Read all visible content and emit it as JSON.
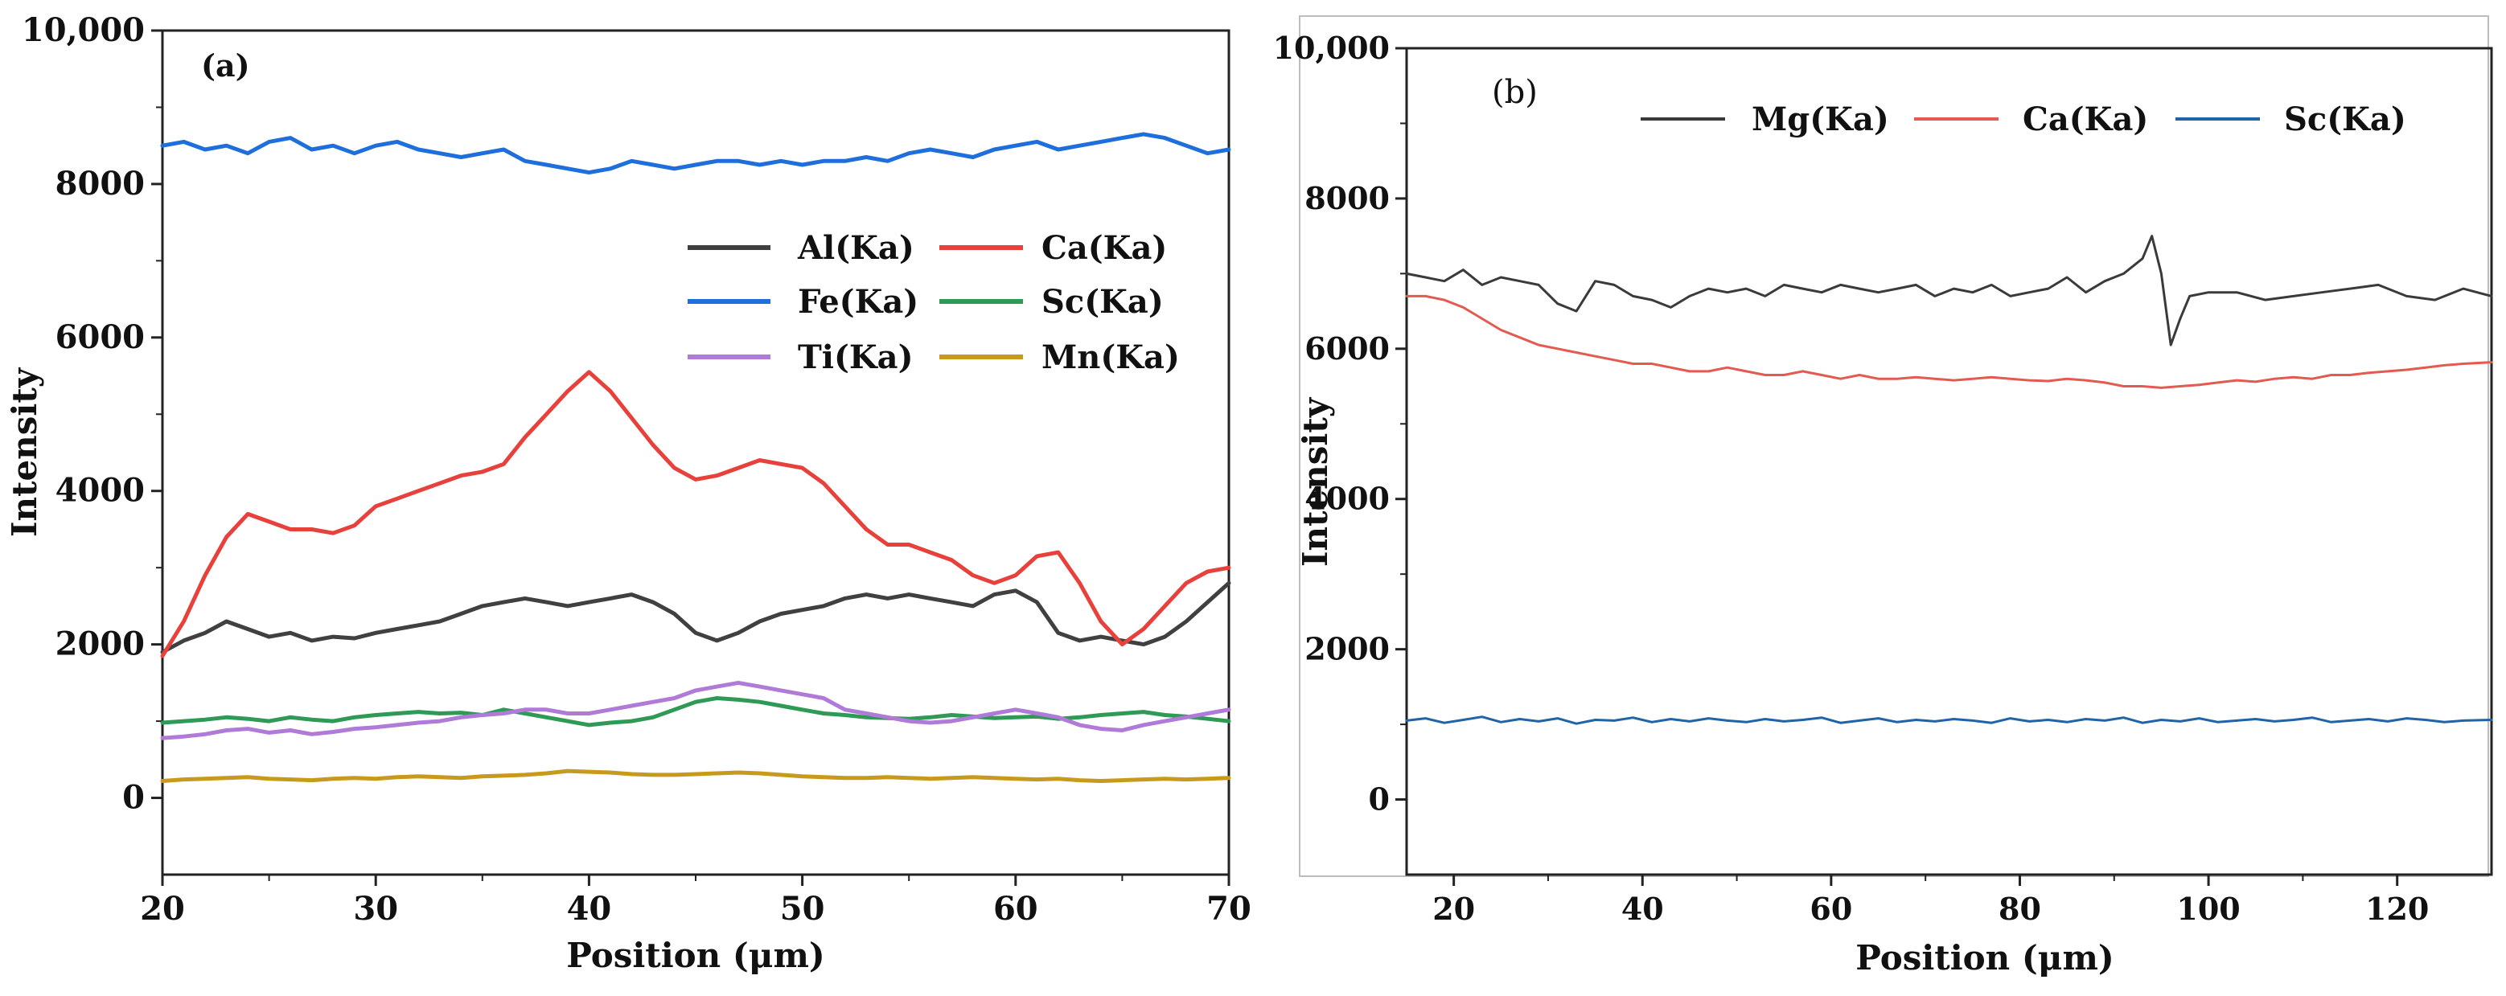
{
  "chart_data": [
    {
      "panel_label": "(a)",
      "type": "line",
      "xlabel": "Position (μm)",
      "ylabel": "Intensity",
      "xlim": [
        20,
        70
      ],
      "ylim": [
        -1000,
        10000
      ],
      "xticks": [
        20,
        30,
        40,
        50,
        60,
        70
      ],
      "xtick_labels": [
        "20",
        "30",
        "40",
        "50",
        "60",
        "70"
      ],
      "yticks": [
        0,
        2000,
        4000,
        6000,
        8000,
        10000
      ],
      "ytick_labels": [
        "0",
        "2000",
        "4000",
        "6000",
        "8000",
        "10,000"
      ],
      "legend_position": "right",
      "series": [
        {
          "name": "Al(Ka)",
          "color": "#404040",
          "x": [
            20,
            21,
            22,
            23,
            24,
            25,
            26,
            27,
            28,
            29,
            30,
            31,
            32,
            33,
            34,
            35,
            36,
            37,
            38,
            39,
            40,
            41,
            42,
            43,
            44,
            45,
            46,
            47,
            48,
            49,
            50,
            51,
            52,
            53,
            54,
            55,
            56,
            57,
            58,
            59,
            60,
            61,
            62,
            63,
            64,
            65,
            66,
            67,
            68,
            69,
            70
          ],
          "y": [
            1900,
            2050,
            2150,
            2300,
            2200,
            2100,
            2150,
            2050,
            2100,
            2080,
            2150,
            2200,
            2250,
            2300,
            2400,
            2500,
            2550,
            2600,
            2550,
            2500,
            2550,
            2600,
            2650,
            2550,
            2400,
            2150,
            2050,
            2150,
            2300,
            2400,
            2450,
            2500,
            2600,
            2650,
            2600,
            2650,
            2600,
            2550,
            2500,
            2650,
            2700,
            2550,
            2150,
            2050,
            2100,
            2050,
            2000,
            2100,
            2300,
            2550,
            2800
          ]
        },
        {
          "name": "Ca(Ka)",
          "color": "#e8413c",
          "x": [
            20,
            21,
            22,
            23,
            24,
            25,
            26,
            27,
            28,
            29,
            30,
            31,
            32,
            33,
            34,
            35,
            36,
            37,
            38,
            39,
            40,
            41,
            42,
            43,
            44,
            45,
            46,
            47,
            48,
            49,
            50,
            51,
            52,
            53,
            54,
            55,
            56,
            57,
            58,
            59,
            60,
            61,
            62,
            63,
            64,
            65,
            66,
            67,
            68,
            69,
            70
          ],
          "y": [
            1850,
            2300,
            2900,
            3400,
            3700,
            3600,
            3500,
            3500,
            3450,
            3550,
            3800,
            3900,
            4000,
            4100,
            4200,
            4250,
            4350,
            4700,
            5000,
            5300,
            5550,
            5300,
            4950,
            4600,
            4300,
            4150,
            4200,
            4300,
            4400,
            4350,
            4300,
            4100,
            3800,
            3500,
            3300,
            3300,
            3200,
            3100,
            2900,
            2800,
            2900,
            3150,
            3200,
            2800,
            2300,
            2000,
            2200,
            2500,
            2800,
            2950,
            3000
          ]
        },
        {
          "name": "Fe(Ka)",
          "color": "#1e6fdc",
          "x": [
            20,
            21,
            22,
            23,
            24,
            25,
            26,
            27,
            28,
            29,
            30,
            31,
            32,
            33,
            34,
            35,
            36,
            37,
            38,
            39,
            40,
            41,
            42,
            43,
            44,
            45,
            46,
            47,
            48,
            49,
            50,
            51,
            52,
            53,
            54,
            55,
            56,
            57,
            58,
            59,
            60,
            61,
            62,
            63,
            64,
            65,
            66,
            67,
            68,
            69,
            70
          ],
          "y": [
            8500,
            8550,
            8450,
            8500,
            8400,
            8550,
            8600,
            8450,
            8500,
            8400,
            8500,
            8550,
            8450,
            8400,
            8350,
            8400,
            8450,
            8300,
            8250,
            8200,
            8150,
            8200,
            8300,
            8250,
            8200,
            8250,
            8300,
            8300,
            8250,
            8300,
            8250,
            8300,
            8300,
            8350,
            8300,
            8400,
            8450,
            8400,
            8350,
            8450,
            8500,
            8550,
            8450,
            8500,
            8550,
            8600,
            8650,
            8600,
            8500,
            8400,
            8450
          ]
        },
        {
          "name": "Sc(Ka)",
          "color": "#2e9a55",
          "x": [
            20,
            21,
            22,
            23,
            24,
            25,
            26,
            27,
            28,
            29,
            30,
            31,
            32,
            33,
            34,
            35,
            36,
            37,
            38,
            39,
            40,
            41,
            42,
            43,
            44,
            45,
            46,
            47,
            48,
            49,
            50,
            51,
            52,
            53,
            54,
            55,
            56,
            57,
            58,
            59,
            60,
            61,
            62,
            63,
            64,
            65,
            66,
            67,
            68,
            69,
            70
          ],
          "y": [
            980,
            1000,
            1020,
            1050,
            1030,
            1000,
            1050,
            1020,
            1000,
            1050,
            1080,
            1100,
            1120,
            1100,
            1110,
            1080,
            1150,
            1100,
            1050,
            1000,
            950,
            980,
            1000,
            1050,
            1150,
            1250,
            1300,
            1280,
            1250,
            1200,
            1150,
            1100,
            1080,
            1050,
            1040,
            1030,
            1050,
            1080,
            1060,
            1040,
            1050,
            1060,
            1030,
            1050,
            1080,
            1100,
            1120,
            1080,
            1060,
            1030,
            1000
          ]
        },
        {
          "name": "Ti(Ka)",
          "color": "#b07ad8",
          "x": [
            20,
            21,
            22,
            23,
            24,
            25,
            26,
            27,
            28,
            29,
            30,
            31,
            32,
            33,
            34,
            35,
            36,
            37,
            38,
            39,
            40,
            41,
            42,
            43,
            44,
            45,
            46,
            47,
            48,
            49,
            50,
            51,
            52,
            53,
            54,
            55,
            56,
            57,
            58,
            59,
            60,
            61,
            62,
            63,
            64,
            65,
            66,
            67,
            68,
            69,
            70
          ],
          "y": [
            780,
            800,
            830,
            880,
            900,
            850,
            880,
            830,
            860,
            900,
            920,
            950,
            980,
            1000,
            1050,
            1080,
            1100,
            1150,
            1150,
            1100,
            1100,
            1150,
            1200,
            1250,
            1300,
            1400,
            1450,
            1500,
            1450,
            1400,
            1350,
            1300,
            1150,
            1100,
            1050,
            1000,
            980,
            1000,
            1050,
            1100,
            1150,
            1100,
            1050,
            950,
            900,
            880,
            950,
            1000,
            1050,
            1100,
            1150
          ]
        },
        {
          "name": "Mn(Ka)",
          "color": "#c89a1c",
          "x": [
            20,
            21,
            22,
            23,
            24,
            25,
            26,
            27,
            28,
            29,
            30,
            31,
            32,
            33,
            34,
            35,
            36,
            37,
            38,
            39,
            40,
            41,
            42,
            43,
            44,
            45,
            46,
            47,
            48,
            49,
            50,
            51,
            52,
            53,
            54,
            55,
            56,
            57,
            58,
            59,
            60,
            61,
            62,
            63,
            64,
            65,
            66,
            67,
            68,
            69,
            70
          ],
          "y": [
            220,
            240,
            250,
            260,
            270,
            250,
            240,
            230,
            250,
            260,
            250,
            270,
            280,
            270,
            260,
            280,
            290,
            300,
            320,
            350,
            340,
            330,
            310,
            300,
            300,
            310,
            320,
            330,
            320,
            300,
            280,
            270,
            260,
            260,
            270,
            260,
            250,
            260,
            270,
            260,
            250,
            240,
            250,
            230,
            220,
            230,
            240,
            250,
            240,
            250,
            260
          ]
        }
      ]
    },
    {
      "panel_label": "(b)",
      "type": "line",
      "xlabel": "Position (μm)",
      "ylabel": "Intensity",
      "xlim": [
        15,
        130
      ],
      "ylim": [
        -1000,
        10000
      ],
      "xticks": [
        20,
        40,
        60,
        80,
        100,
        120
      ],
      "xtick_labels": [
        "20",
        "40",
        "60",
        "80",
        "100",
        "120"
      ],
      "yticks": [
        0,
        2000,
        4000,
        6000,
        8000,
        10000
      ],
      "ytick_labels": [
        "0",
        "2000",
        "4000",
        "6000",
        "8000",
        "10,000"
      ],
      "legend_position": "top",
      "series": [
        {
          "name": "Mg(Ka)",
          "color": "#3a3a3a",
          "x": [
            15,
            17,
            19,
            21,
            23,
            25,
            27,
            29,
            31,
            33,
            35,
            37,
            39,
            41,
            43,
            45,
            47,
            49,
            51,
            53,
            55,
            57,
            59,
            61,
            63,
            65,
            67,
            69,
            71,
            73,
            75,
            77,
            79,
            81,
            83,
            85,
            87,
            89,
            91,
            93,
            94,
            95,
            96,
            97,
            98,
            100,
            103,
            106,
            109,
            112,
            115,
            118,
            121,
            124,
            127,
            130
          ],
          "y": [
            7000,
            6950,
            6900,
            7050,
            6850,
            6950,
            6900,
            6850,
            6600,
            6500,
            6900,
            6850,
            6700,
            6650,
            6550,
            6700,
            6800,
            6750,
            6800,
            6700,
            6850,
            6800,
            6750,
            6850,
            6800,
            6750,
            6800,
            6850,
            6700,
            6800,
            6750,
            6850,
            6700,
            6750,
            6800,
            6950,
            6750,
            6900,
            7000,
            7200,
            7500,
            7000,
            6050,
            6400,
            6700,
            6750,
            6750,
            6650,
            6700,
            6750,
            6800,
            6850,
            6700,
            6650,
            6800,
            6700
          ]
        },
        {
          "name": "Ca(Ka)",
          "color": "#e35a50",
          "x": [
            15,
            17,
            19,
            21,
            23,
            25,
            27,
            29,
            31,
            33,
            35,
            37,
            39,
            41,
            43,
            45,
            47,
            49,
            51,
            53,
            55,
            57,
            59,
            61,
            63,
            65,
            67,
            69,
            71,
            73,
            75,
            77,
            79,
            81,
            83,
            85,
            87,
            89,
            91,
            93,
            95,
            97,
            99,
            101,
            103,
            105,
            107,
            109,
            111,
            113,
            115,
            117,
            119,
            121,
            123,
            125,
            127,
            130
          ],
          "y": [
            6700,
            6700,
            6650,
            6550,
            6400,
            6250,
            6150,
            6050,
            6000,
            5950,
            5900,
            5850,
            5800,
            5800,
            5750,
            5700,
            5700,
            5750,
            5700,
            5650,
            5650,
            5700,
            5650,
            5600,
            5650,
            5600,
            5600,
            5620,
            5600,
            5580,
            5600,
            5620,
            5600,
            5580,
            5570,
            5600,
            5580,
            5550,
            5500,
            5500,
            5480,
            5500,
            5520,
            5550,
            5580,
            5560,
            5600,
            5620,
            5600,
            5650,
            5650,
            5680,
            5700,
            5720,
            5750,
            5780,
            5800,
            5820
          ]
        },
        {
          "name": "Sc(Ka)",
          "color": "#1f64a8",
          "x": [
            15,
            17,
            19,
            21,
            23,
            25,
            27,
            29,
            31,
            33,
            35,
            37,
            39,
            41,
            43,
            45,
            47,
            49,
            51,
            53,
            55,
            57,
            59,
            61,
            63,
            65,
            67,
            69,
            71,
            73,
            75,
            77,
            79,
            81,
            83,
            85,
            87,
            89,
            91,
            93,
            95,
            97,
            99,
            101,
            103,
            105,
            107,
            109,
            111,
            113,
            115,
            117,
            119,
            121,
            123,
            125,
            127,
            130
          ],
          "y": [
            1050,
            1080,
            1020,
            1060,
            1100,
            1030,
            1070,
            1040,
            1080,
            1010,
            1060,
            1050,
            1090,
            1030,
            1070,
            1040,
            1080,
            1050,
            1030,
            1070,
            1040,
            1060,
            1090,
            1020,
            1050,
            1080,
            1030,
            1060,
            1040,
            1070,
            1050,
            1020,
            1080,
            1040,
            1060,
            1030,
            1070,
            1050,
            1090,
            1020,
            1060,
            1040,
            1080,
            1030,
            1050,
            1070,
            1040,
            1060,
            1090,
            1030,
            1050,
            1070,
            1040,
            1080,
            1060,
            1030,
            1050,
            1060
          ]
        }
      ]
    }
  ]
}
